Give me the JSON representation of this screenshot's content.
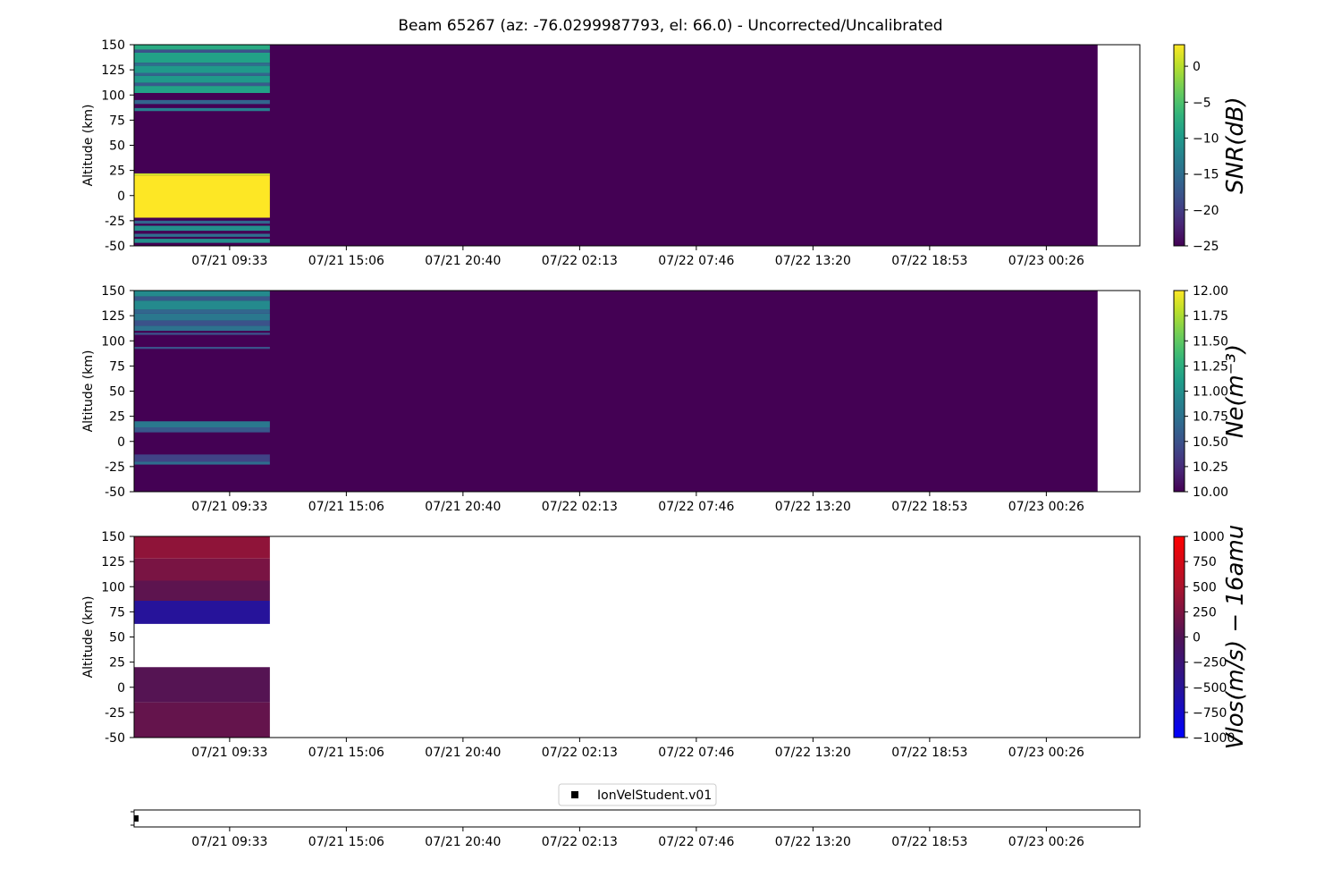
{
  "chart_data": {
    "title": "Beam 65267 (az: -76.0299987793, el: 66.0) - Uncorrected/Uncalibrated",
    "x_tick_labels": [
      "07/21 09:33",
      "07/21 15:06",
      "07/21 20:40",
      "07/22 02:13",
      "07/22 07:46",
      "07/22 13:20",
      "07/22 18:53",
      "07/23 00:26"
    ],
    "data_span_fraction": [
      0.0,
      0.958
    ],
    "panels": [
      {
        "type": "heatmap",
        "name": "snr",
        "ylabel": "Altitude (km)",
        "ylim": [
          -50,
          150
        ],
        "y_ticks": [
          150,
          125,
          100,
          75,
          50,
          25,
          0,
          -25,
          -50
        ],
        "colormap": "viridis",
        "colorbar_label": "SNR(dB)",
        "colorbar_range": [
          -25,
          3
        ],
        "colorbar_ticks": [
          0,
          -5,
          -10,
          -15,
          -20,
          -25
        ],
        "background_value": -25,
        "active_block_fraction": [
          0.0,
          0.135
        ],
        "bands": [
          {
            "alt": [
              145,
              150
            ],
            "value": -8
          },
          {
            "alt": [
              142,
              145
            ],
            "value": -18
          },
          {
            "alt": [
              132,
              142
            ],
            "value": -9
          },
          {
            "alt": [
              129,
              132
            ],
            "value": -15
          },
          {
            "alt": [
              122,
              129
            ],
            "value": -10
          },
          {
            "alt": [
              119,
              122
            ],
            "value": -16
          },
          {
            "alt": [
              112,
              119
            ],
            "value": -10
          },
          {
            "alt": [
              109,
              112
            ],
            "value": -17
          },
          {
            "alt": [
              102,
              109
            ],
            "value": -9
          },
          {
            "alt": [
              91,
              95
            ],
            "value": -16
          },
          {
            "alt": [
              84,
              87
            ],
            "value": -13
          },
          {
            "alt": [
              20,
              22
            ],
            "value": 1
          },
          {
            "alt": [
              -22,
              20
            ],
            "value": 3
          },
          {
            "alt": [
              -28,
              -25
            ],
            "value": -16
          },
          {
            "alt": [
              -35,
              -30
            ],
            "value": -11
          },
          {
            "alt": [
              -41,
              -38
            ],
            "value": -15
          },
          {
            "alt": [
              -47,
              -43
            ],
            "value": -11
          }
        ]
      },
      {
        "type": "heatmap",
        "name": "ne",
        "ylabel": "Altitude (km)",
        "ylim": [
          -50,
          150
        ],
        "y_ticks": [
          150,
          125,
          100,
          75,
          50,
          25,
          0,
          -25,
          -50
        ],
        "colormap": "viridis",
        "colorbar_label": "Ne(m⁻³)",
        "colorbar_range": [
          10.0,
          12.0
        ],
        "colorbar_ticks": [
          12.0,
          11.75,
          11.5,
          11.25,
          11.0,
          10.75,
          10.5,
          10.25,
          10.0
        ],
        "background_value": 10.0,
        "active_block_fraction": [
          0.0,
          0.135
        ],
        "bands": [
          {
            "alt": [
              144,
              150
            ],
            "value": 10.95
          },
          {
            "alt": [
              140,
              144
            ],
            "value": 10.55
          },
          {
            "alt": [
              131,
              140
            ],
            "value": 10.95
          },
          {
            "alt": [
              127,
              131
            ],
            "value": 10.65
          },
          {
            "alt": [
              120,
              127
            ],
            "value": 10.8
          },
          {
            "alt": [
              115,
              120
            ],
            "value": 10.5
          },
          {
            "alt": [
              110,
              115
            ],
            "value": 10.75
          },
          {
            "alt": [
              106,
              108
            ],
            "value": 10.5
          },
          {
            "alt": [
              92,
              94
            ],
            "value": 10.5
          },
          {
            "alt": [
              14,
              20
            ],
            "value": 10.8
          },
          {
            "alt": [
              9,
              14
            ],
            "value": 10.55
          },
          {
            "alt": [
              -20,
              -13
            ],
            "value": 10.4
          },
          {
            "alt": [
              -23,
              -20
            ],
            "value": 10.7
          }
        ]
      },
      {
        "type": "heatmap",
        "name": "vlos",
        "ylabel": "Altitude (km)",
        "ylim": [
          -50,
          150
        ],
        "y_ticks": [
          150,
          125,
          100,
          75,
          50,
          25,
          0,
          -25,
          -50
        ],
        "colormap": "bwr-dark",
        "colorbar_label": "Vlos(m/s) − 16amu",
        "colorbar_range": [
          -1000,
          1000
        ],
        "colorbar_ticks": [
          1000,
          750,
          500,
          250,
          0,
          -250,
          -500,
          -750,
          -1000
        ],
        "background_value": null,
        "active_block_fraction": [
          0.0,
          0.135
        ],
        "bands": [
          {
            "alt": [
              128,
              150
            ],
            "value": 350
          },
          {
            "alt": [
              106,
              128
            ],
            "value": 230
          },
          {
            "alt": [
              86,
              106
            ],
            "value": 70
          },
          {
            "alt": [
              63,
              86
            ],
            "value": -520
          },
          {
            "alt": [
              20,
              63
            ],
            "value": null
          },
          {
            "alt": [
              -15,
              20
            ],
            "value": 30
          },
          {
            "alt": [
              -50,
              -15
            ],
            "value": 110
          }
        ]
      }
    ],
    "legend": {
      "entries": [
        "IonVelStudent.v01"
      ],
      "marker": "square",
      "placement": "bottom-center"
    }
  }
}
